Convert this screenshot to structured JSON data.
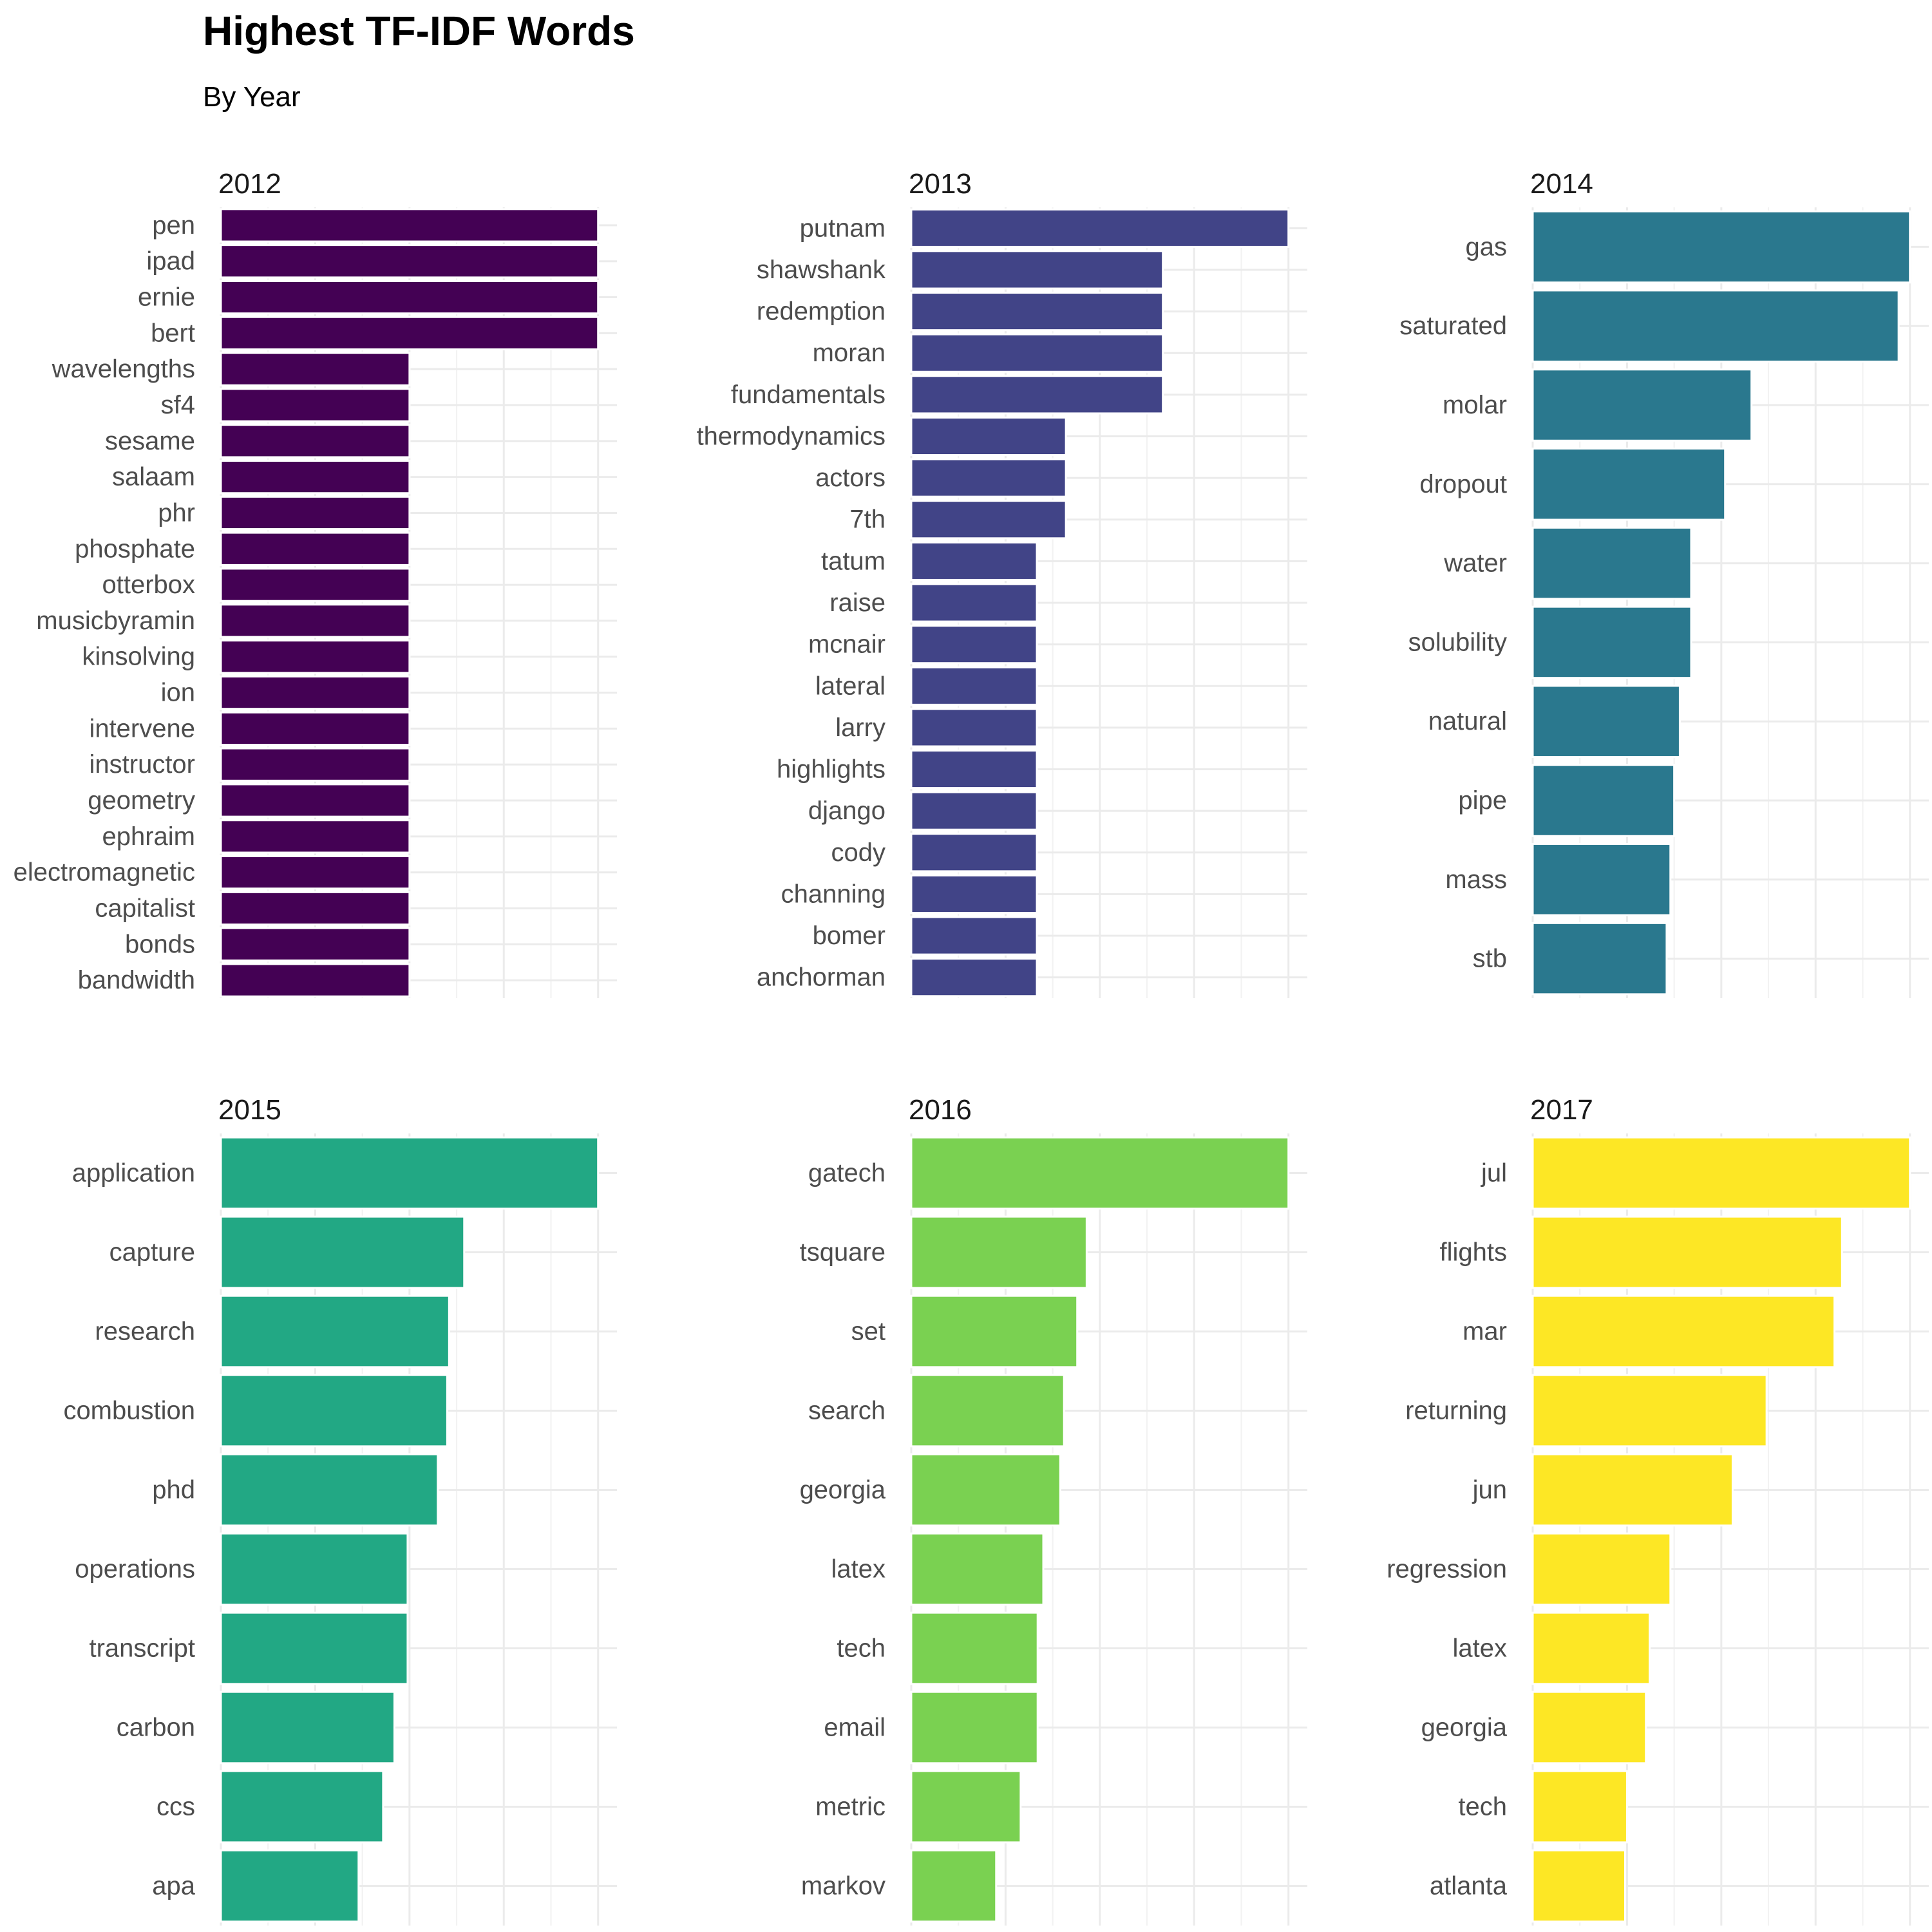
{
  "chart_data": {
    "type": "bar",
    "orientation": "horizontal",
    "title": "Highest TF-IDF Words",
    "subtitle": "By Year",
    "xlabel": "",
    "ylabel": "",
    "x_tick_labels_shown": false,
    "grid": true,
    "legend": "none",
    "value_scale": "relative (max bar = 1.0); no numeric axis labels shown",
    "xlim": [
      0,
      1.05
    ],
    "panels": [
      {
        "name": "2012",
        "color": "#440154",
        "categories": [
          "pen",
          "ipad",
          "ernie",
          "bert",
          "wavelengths",
          "sf4",
          "sesame",
          "salaam",
          "phr",
          "phosphate",
          "otterbox",
          "musicbyramin",
          "kinsolving",
          "ion",
          "intervene",
          "instructor",
          "geometry",
          "ephraim",
          "electromagnetic",
          "capitalist",
          "bonds",
          "bandwidth"
        ],
        "values": [
          1.0,
          1.0,
          1.0,
          1.0,
          0.5,
          0.5,
          0.5,
          0.5,
          0.5,
          0.5,
          0.5,
          0.5,
          0.5,
          0.5,
          0.5,
          0.5,
          0.5,
          0.5,
          0.5,
          0.5,
          0.5,
          0.5
        ]
      },
      {
        "name": "2013",
        "color": "#414487",
        "categories": [
          "putnam",
          "shawshank",
          "redemption",
          "moran",
          "fundamentals",
          "thermodynamics",
          "actors",
          "7th",
          "tatum",
          "raise",
          "mcnair",
          "lateral",
          "larry",
          "highlights",
          "django",
          "cody",
          "channing",
          "bomer",
          "anchorman"
        ],
        "values": [
          1.0,
          0.667,
          0.667,
          0.667,
          0.667,
          0.41,
          0.41,
          0.41,
          0.333,
          0.333,
          0.333,
          0.333,
          0.333,
          0.333,
          0.333,
          0.333,
          0.333,
          0.333,
          0.333
        ]
      },
      {
        "name": "2014",
        "color": "#2a788e",
        "categories": [
          "gas",
          "saturated",
          "molar",
          "dropout",
          "water",
          "solubility",
          "natural",
          "pipe",
          "mass",
          "stb"
        ],
        "values": [
          1.0,
          0.97,
          0.58,
          0.51,
          0.42,
          0.42,
          0.39,
          0.375,
          0.365,
          0.355
        ]
      },
      {
        "name": "2015",
        "color": "#22a884",
        "categories": [
          "application",
          "capture",
          "research",
          "combustion",
          "phd",
          "operations",
          "transcript",
          "carbon",
          "ccs",
          "apa"
        ],
        "values": [
          1.0,
          0.645,
          0.605,
          0.6,
          0.575,
          0.495,
          0.495,
          0.46,
          0.43,
          0.365
        ]
      },
      {
        "name": "2016",
        "color": "#7ad151",
        "categories": [
          "gatech",
          "tsquare",
          "set",
          "search",
          "georgia",
          "latex",
          "tech",
          "email",
          "metric",
          "markov"
        ],
        "values": [
          1.0,
          0.465,
          0.44,
          0.405,
          0.395,
          0.35,
          0.335,
          0.335,
          0.29,
          0.225
        ]
      },
      {
        "name": "2017",
        "color": "#fde725",
        "categories": [
          "jul",
          "flights",
          "mar",
          "returning",
          "jun",
          "regression",
          "latex",
          "georgia",
          "tech",
          "atlanta"
        ],
        "values": [
          1.0,
          0.82,
          0.8,
          0.62,
          0.53,
          0.365,
          0.31,
          0.3,
          0.25,
          0.245
        ]
      }
    ]
  }
}
